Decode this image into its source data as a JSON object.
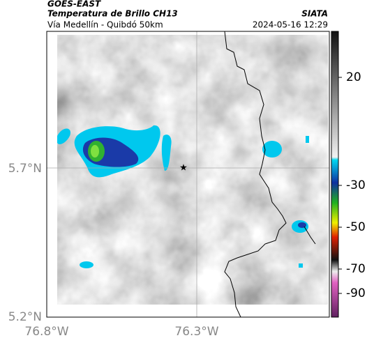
{
  "header": {
    "source": "GOES-EAST",
    "title": "Temperatura de Brillo CH13",
    "subtitle": "Vía Medellín - Quibdó 50km",
    "agency": "SIATA",
    "datetime": "2024-05-16 12:29"
  },
  "map": {
    "lat_labels": [
      "5.7°N",
      "5.2°N"
    ],
    "lon_labels": [
      "76.8°W",
      "76.3°W"
    ]
  },
  "colorbar": {
    "labels": [
      "20",
      "-30",
      "-50",
      "-70",
      "-90"
    ]
  }
}
